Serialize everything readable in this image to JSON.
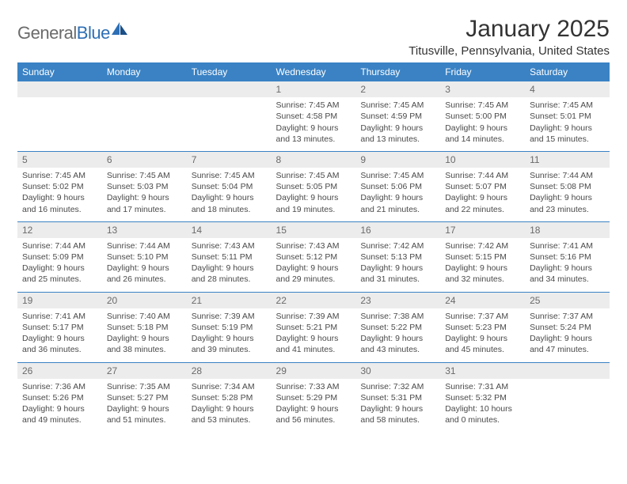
{
  "brand": {
    "name_part1": "General",
    "name_part2": "Blue",
    "accent_color": "#2d6fb5"
  },
  "title": "January 2025",
  "location": "Titusville, Pennsylvania, United States",
  "header_bg": "#3a82c4",
  "daynum_bg": "#ececec",
  "row_divider": "#3a82c4",
  "weekdays": [
    "Sunday",
    "Monday",
    "Tuesday",
    "Wednesday",
    "Thursday",
    "Friday",
    "Saturday"
  ],
  "weeks": [
    [
      null,
      null,
      null,
      {
        "day": "1",
        "sunrise": "Sunrise: 7:45 AM",
        "sunset": "Sunset: 4:58 PM",
        "daylight": "Daylight: 9 hours and 13 minutes."
      },
      {
        "day": "2",
        "sunrise": "Sunrise: 7:45 AM",
        "sunset": "Sunset: 4:59 PM",
        "daylight": "Daylight: 9 hours and 13 minutes."
      },
      {
        "day": "3",
        "sunrise": "Sunrise: 7:45 AM",
        "sunset": "Sunset: 5:00 PM",
        "daylight": "Daylight: 9 hours and 14 minutes."
      },
      {
        "day": "4",
        "sunrise": "Sunrise: 7:45 AM",
        "sunset": "Sunset: 5:01 PM",
        "daylight": "Daylight: 9 hours and 15 minutes."
      }
    ],
    [
      {
        "day": "5",
        "sunrise": "Sunrise: 7:45 AM",
        "sunset": "Sunset: 5:02 PM",
        "daylight": "Daylight: 9 hours and 16 minutes."
      },
      {
        "day": "6",
        "sunrise": "Sunrise: 7:45 AM",
        "sunset": "Sunset: 5:03 PM",
        "daylight": "Daylight: 9 hours and 17 minutes."
      },
      {
        "day": "7",
        "sunrise": "Sunrise: 7:45 AM",
        "sunset": "Sunset: 5:04 PM",
        "daylight": "Daylight: 9 hours and 18 minutes."
      },
      {
        "day": "8",
        "sunrise": "Sunrise: 7:45 AM",
        "sunset": "Sunset: 5:05 PM",
        "daylight": "Daylight: 9 hours and 19 minutes."
      },
      {
        "day": "9",
        "sunrise": "Sunrise: 7:45 AM",
        "sunset": "Sunset: 5:06 PM",
        "daylight": "Daylight: 9 hours and 21 minutes."
      },
      {
        "day": "10",
        "sunrise": "Sunrise: 7:44 AM",
        "sunset": "Sunset: 5:07 PM",
        "daylight": "Daylight: 9 hours and 22 minutes."
      },
      {
        "day": "11",
        "sunrise": "Sunrise: 7:44 AM",
        "sunset": "Sunset: 5:08 PM",
        "daylight": "Daylight: 9 hours and 23 minutes."
      }
    ],
    [
      {
        "day": "12",
        "sunrise": "Sunrise: 7:44 AM",
        "sunset": "Sunset: 5:09 PM",
        "daylight": "Daylight: 9 hours and 25 minutes."
      },
      {
        "day": "13",
        "sunrise": "Sunrise: 7:44 AM",
        "sunset": "Sunset: 5:10 PM",
        "daylight": "Daylight: 9 hours and 26 minutes."
      },
      {
        "day": "14",
        "sunrise": "Sunrise: 7:43 AM",
        "sunset": "Sunset: 5:11 PM",
        "daylight": "Daylight: 9 hours and 28 minutes."
      },
      {
        "day": "15",
        "sunrise": "Sunrise: 7:43 AM",
        "sunset": "Sunset: 5:12 PM",
        "daylight": "Daylight: 9 hours and 29 minutes."
      },
      {
        "day": "16",
        "sunrise": "Sunrise: 7:42 AM",
        "sunset": "Sunset: 5:13 PM",
        "daylight": "Daylight: 9 hours and 31 minutes."
      },
      {
        "day": "17",
        "sunrise": "Sunrise: 7:42 AM",
        "sunset": "Sunset: 5:15 PM",
        "daylight": "Daylight: 9 hours and 32 minutes."
      },
      {
        "day": "18",
        "sunrise": "Sunrise: 7:41 AM",
        "sunset": "Sunset: 5:16 PM",
        "daylight": "Daylight: 9 hours and 34 minutes."
      }
    ],
    [
      {
        "day": "19",
        "sunrise": "Sunrise: 7:41 AM",
        "sunset": "Sunset: 5:17 PM",
        "daylight": "Daylight: 9 hours and 36 minutes."
      },
      {
        "day": "20",
        "sunrise": "Sunrise: 7:40 AM",
        "sunset": "Sunset: 5:18 PM",
        "daylight": "Daylight: 9 hours and 38 minutes."
      },
      {
        "day": "21",
        "sunrise": "Sunrise: 7:39 AM",
        "sunset": "Sunset: 5:19 PM",
        "daylight": "Daylight: 9 hours and 39 minutes."
      },
      {
        "day": "22",
        "sunrise": "Sunrise: 7:39 AM",
        "sunset": "Sunset: 5:21 PM",
        "daylight": "Daylight: 9 hours and 41 minutes."
      },
      {
        "day": "23",
        "sunrise": "Sunrise: 7:38 AM",
        "sunset": "Sunset: 5:22 PM",
        "daylight": "Daylight: 9 hours and 43 minutes."
      },
      {
        "day": "24",
        "sunrise": "Sunrise: 7:37 AM",
        "sunset": "Sunset: 5:23 PM",
        "daylight": "Daylight: 9 hours and 45 minutes."
      },
      {
        "day": "25",
        "sunrise": "Sunrise: 7:37 AM",
        "sunset": "Sunset: 5:24 PM",
        "daylight": "Daylight: 9 hours and 47 minutes."
      }
    ],
    [
      {
        "day": "26",
        "sunrise": "Sunrise: 7:36 AM",
        "sunset": "Sunset: 5:26 PM",
        "daylight": "Daylight: 9 hours and 49 minutes."
      },
      {
        "day": "27",
        "sunrise": "Sunrise: 7:35 AM",
        "sunset": "Sunset: 5:27 PM",
        "daylight": "Daylight: 9 hours and 51 minutes."
      },
      {
        "day": "28",
        "sunrise": "Sunrise: 7:34 AM",
        "sunset": "Sunset: 5:28 PM",
        "daylight": "Daylight: 9 hours and 53 minutes."
      },
      {
        "day": "29",
        "sunrise": "Sunrise: 7:33 AM",
        "sunset": "Sunset: 5:29 PM",
        "daylight": "Daylight: 9 hours and 56 minutes."
      },
      {
        "day": "30",
        "sunrise": "Sunrise: 7:32 AM",
        "sunset": "Sunset: 5:31 PM",
        "daylight": "Daylight: 9 hours and 58 minutes."
      },
      {
        "day": "31",
        "sunrise": "Sunrise: 7:31 AM",
        "sunset": "Sunset: 5:32 PM",
        "daylight": "Daylight: 10 hours and 0 minutes."
      },
      null
    ]
  ]
}
